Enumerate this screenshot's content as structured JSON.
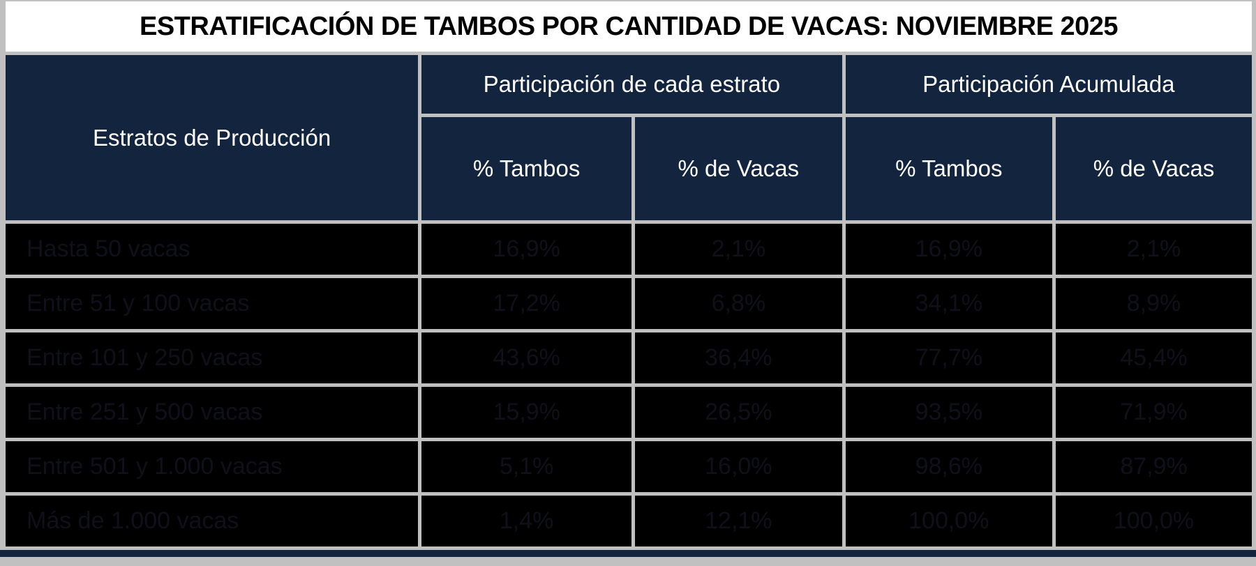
{
  "chart_data": {
    "type": "table",
    "title": "ESTRATIFICACIÓN DE TAMBOS POR CANTIDAD DE VACAS: NOVIEMBRE 2025",
    "row_header_label": "Estratos de Producción",
    "groups": [
      {
        "label": "Participación de cada estrato",
        "columns": [
          "% Tambos",
          "% de Vacas"
        ]
      },
      {
        "label": "Participación Acumulada",
        "columns": [
          "% Tambos",
          "% de Vacas"
        ]
      }
    ],
    "rows": [
      {
        "estrato": "Hasta 50 vacas",
        "values": [
          "16,9%",
          "2,1%",
          "16,9%",
          "2,1%"
        ]
      },
      {
        "estrato": "Entre 51 y 100 vacas",
        "values": [
          "17,2%",
          "6,8%",
          "34,1%",
          "8,9%"
        ]
      },
      {
        "estrato": "Entre 101 y 250 vacas",
        "values": [
          "43,6%",
          "36,4%",
          "77,7%",
          "45,4%"
        ]
      },
      {
        "estrato": "Entre 251 y 500 vacas",
        "values": [
          "15,9%",
          "26,5%",
          "93,5%",
          "71,9%"
        ]
      },
      {
        "estrato": "Entre 501 y 1.000 vacas",
        "values": [
          "5,1%",
          "16,0%",
          "98,6%",
          "87,9%"
        ]
      },
      {
        "estrato": "Más de 1.000 vacas",
        "values": [
          "1,4%",
          "12,1%",
          "100,0%",
          "100,0%"
        ]
      }
    ],
    "layout": {
      "grid": true,
      "header_position": "top"
    }
  },
  "colors": {
    "header_bg": "#12243E",
    "header_text": "#FFFFFF",
    "grid_lines": "#C0C0C0",
    "title_bg": "#FFFFFF",
    "title_text": "#000000",
    "row_bg": "#000000",
    "row_text": "#10101B"
  }
}
